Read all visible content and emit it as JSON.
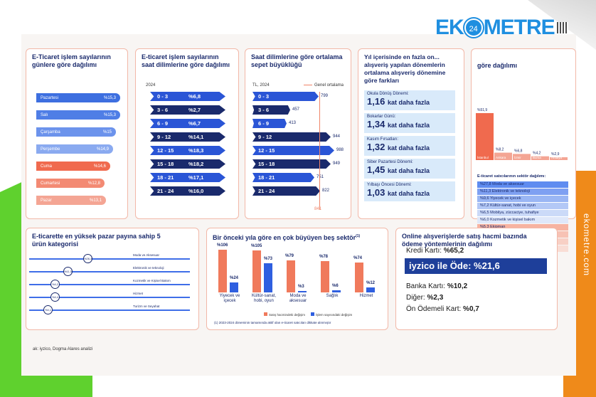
{
  "brand": {
    "logo_left": "EK",
    "logo_badge": "24",
    "logo_right": "METRE",
    "side_text": "ekometre.com"
  },
  "colors": {
    "navy": "#1a2a6c",
    "blue": "#1e3f9a",
    "salmon": "#f08468",
    "orange": "#ef8a1a",
    "green": "#5fd12e"
  },
  "card1": {
    "title": "E-Ticaret işlem sayılarının günlere göre dağılımı",
    "rows": [
      {
        "day": "Pazartesi",
        "value": "%15,3",
        "color": "#3d6fe0"
      },
      {
        "day": "Salı",
        "value": "%15,3",
        "color": "#4f7ee6"
      },
      {
        "day": "Çarşamba",
        "value": "%15",
        "color": "#6c93ec"
      },
      {
        "day": "Perşembe",
        "value": "%14,9",
        "color": "#8aaaf0"
      },
      {
        "day": "Cuma",
        "value": "%14,6",
        "color": "#f06a4e"
      },
      {
        "day": "Cumartesi",
        "value": "%12,8",
        "color": "#f38a73"
      },
      {
        "day": "Pazar",
        "value": "%13,1",
        "color": "#f4a594"
      }
    ]
  },
  "card2": {
    "title": "E-ticaret işlem sayılarının saat dilimlerine göre dağılımı",
    "year": "2024",
    "rows": [
      {
        "range": "0 - 3",
        "value": "%6,8"
      },
      {
        "range": "3 - 6",
        "value": "%2,7"
      },
      {
        "range": "6 - 9",
        "value": "%6,7"
      },
      {
        "range": "9 - 12",
        "value": "%14,1"
      },
      {
        "range": "12 - 15",
        "value": "%18,3"
      },
      {
        "range": "15 - 18",
        "value": "%18,2"
      },
      {
        "range": "18 - 21",
        "value": "%17,1"
      },
      {
        "range": "21 - 24",
        "value": "%16,0"
      }
    ]
  },
  "card3": {
    "title": "Saat dilimlerine göre ortalama sepet büyüklüğü",
    "unit": "TL, 2024",
    "avg_label": "Genel ortalama",
    "avg_value": "841",
    "rows": [
      {
        "range": "0 - 3",
        "value": "799",
        "num": 799
      },
      {
        "range": "3 - 6",
        "value": "457",
        "num": 457
      },
      {
        "range": "6 - 9",
        "value": "413",
        "num": 413
      },
      {
        "range": "9 - 12",
        "value": "944",
        "num": 944
      },
      {
        "range": "12 - 15",
        "value": "988",
        "num": 988
      },
      {
        "range": "15 - 18",
        "value": "949",
        "num": 949
      },
      {
        "range": "18 - 21",
        "value": "751",
        "num": 751
      },
      {
        "range": "21 - 24",
        "value": "822",
        "num": 822
      }
    ]
  },
  "card4": {
    "title": "Yıl içerisinde en fazla on... alışveriş yapılan dönemlerin ortalama alışveriş dönemine göre farkları",
    "periods": [
      {
        "label": "Okula Dönüş Dönemi:",
        "value": "1,16",
        "suffix": "kat daha fazla"
      },
      {
        "label": "Bokarlar Günü:",
        "value": "1,34",
        "suffix": "kat daha fazla"
      },
      {
        "label": "Kasım Fırsatları:",
        "value": "1,32",
        "suffix": "kat daha fazla"
      },
      {
        "label": "Siber Pazartesi Dönemi:",
        "value": "1,45",
        "suffix": "kat daha fazla"
      },
      {
        "label": "Yılbaşı Öncesi Dönemi:",
        "value": "1,03",
        "suffix": "kat daha fazla"
      }
    ]
  },
  "card5": {
    "title": "göre dağılımı",
    "cities": [
      {
        "name": "İstanbul",
        "value": "%51,9",
        "num": 51.9
      },
      {
        "name": "Ankara",
        "value": "%8,2",
        "num": 8.2
      },
      {
        "name": "İzmir",
        "value": "%6,8",
        "num": 6.8
      },
      {
        "name": "Bursa",
        "value": "%4,2",
        "num": 4.2
      },
      {
        "name": "Antalya",
        "value": "%2,9",
        "num": 2.9
      }
    ],
    "sector_title": "E-ticaret satıcılarının sektör dağılımı:",
    "sectors": [
      {
        "text": "%27,8 Moda ve aksesuar",
        "color": "#5f8cf0"
      },
      {
        "text": "%11,3 Elektronik ve teknoloji",
        "color": "#7ea0f2"
      },
      {
        "text": "%9,6 Yiyecek ve içecek",
        "color": "#9ab6f4"
      },
      {
        "text": "%7,2 Kültür-sanat, hobi ve oyun",
        "color": "#b3c8f6"
      },
      {
        "text": "%6,5 Mobilya, züccaciye, tuhafiye",
        "color": "#cbdaf8"
      },
      {
        "text": "%6,0 Kozmetik ve kişisel bakım",
        "color": "#dfe8fa"
      },
      {
        "text": "%5,3 Ekipman",
        "color": "#f7b3a1"
      },
      {
        "text": "%4,4 Eğitim",
        "color": "#f7c2b4"
      },
      {
        "text": "%4,3 Hizmet",
        "color": "#f8d0c5"
      },
      {
        "text": "%17,6 Diğer",
        "color": "#f9ddd5"
      }
    ]
  },
  "card6": {
    "title": "E-ticarette en yüksek pazar payına sahip 5 ürün kategorisi",
    "rows": [
      {
        "label": "Moda ve Aksesuar",
        "value": "%26,4"
      },
      {
        "label": "Elektronik ve teknoloji",
        "value": "%11,5"
      },
      {
        "label": "Kozmetik ve Kişisel Bakım",
        "value": "%4,2"
      },
      {
        "label": "Hizmet",
        "value": "%4,4"
      },
      {
        "label": "Turizm ve Seyahat",
        "value": "%4,1"
      }
    ]
  },
  "card7": {
    "title": "Bir önceki yıla göre en çok büyüyen beş sektör",
    "title_sup": "(1)",
    "groups": [
      {
        "name": "Yiyecek ve içecek",
        "a": 106,
        "b": 24,
        "a_label": "%106",
        "b_label": "%24"
      },
      {
        "name": "Kültür-sanat, hobi, oyun",
        "a": 105,
        "b": 73,
        "a_label": "%105",
        "b_label": "%73"
      },
      {
        "name": "Moda ve aksesuar",
        "a": 79,
        "b": 3,
        "a_label": "%79",
        "b_label": "%3"
      },
      {
        "name": "Sağlık",
        "a": 78,
        "b": 6,
        "a_label": "%78",
        "b_label": "%6"
      },
      {
        "name": "Hizmet",
        "a": 74,
        "b": 12,
        "a_label": "%74",
        "b_label": "%12"
      }
    ],
    "legend_a": "Satış hacmindeki değişim",
    "legend_b": "İşlem sayısındaki değişim",
    "footnote": "(1) 2023-2024 döneminin tamamında aktif olan e-ticaret satıcıları dikkate alınmıştır"
  },
  "card8": {
    "title": "Online alışverişlerde satış hacmi bazında ödeme yöntemlerinin dağılımı",
    "items": [
      {
        "label": "Kredi Kartı:",
        "value": "%65,2"
      },
      {
        "label": "Banka Kartı:",
        "value": "%10,2"
      },
      {
        "label": "Diğer:",
        "value": "%2,3"
      },
      {
        "label": "Ön Ödemeli Kart:",
        "value": "%0,7"
      }
    ],
    "highlight": "iyzico ile Öde: %21,6"
  },
  "source": "ak: iyzico, Dogma Alares analizi"
}
